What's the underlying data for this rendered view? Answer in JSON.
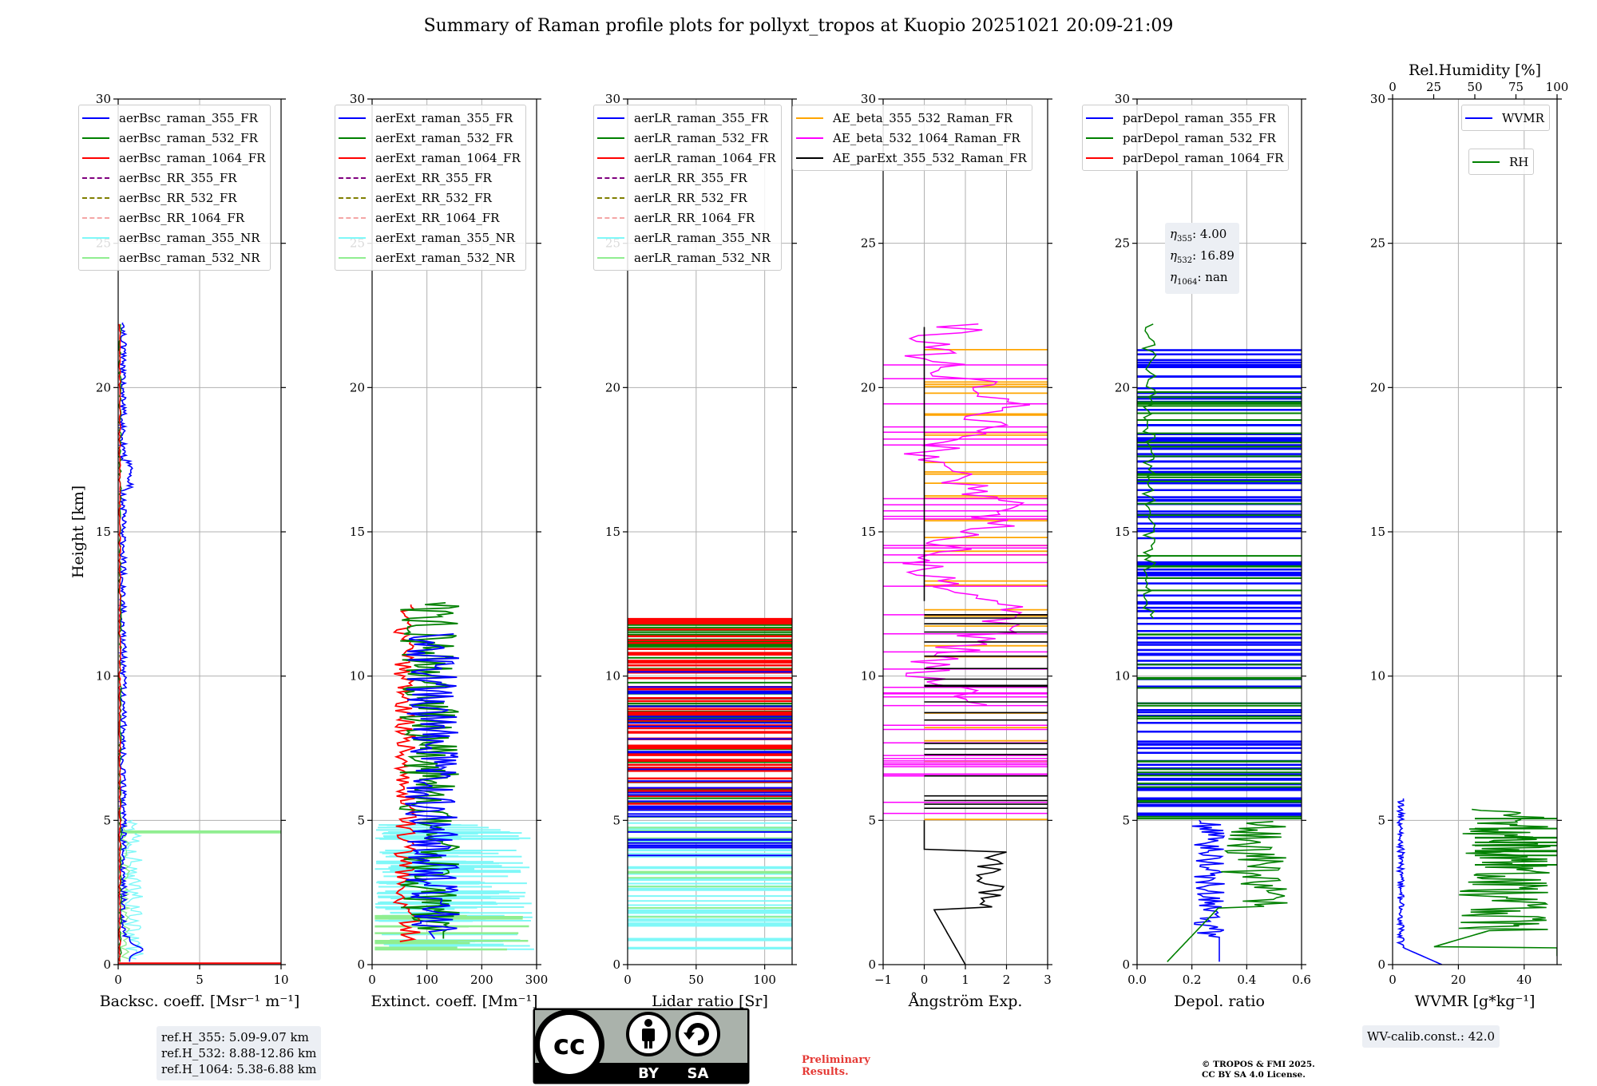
{
  "title": "Summary of Raman profile plots for pollyxt_tropos at Kuopio 20251021 20:09-21:09",
  "ylabel": "Height [km]",
  "chart_data": [
    {
      "id": "bsc",
      "type": "line",
      "xlabel": "Backsc. coeff. [Msr⁻¹ m⁻¹]",
      "xlim": [
        0,
        10
      ],
      "xticks": [
        0,
        5,
        10
      ],
      "ylim": [
        0,
        30
      ],
      "yticks": [
        0,
        5,
        10,
        15,
        20,
        25,
        30
      ],
      "legend": "upper-left",
      "series": [
        {
          "name": "aerBsc_raman_355_FR",
          "color": "#0000ff",
          "style": "solid"
        },
        {
          "name": "aerBsc_raman_532_FR",
          "color": "#008000",
          "style": "solid"
        },
        {
          "name": "aerBsc_raman_1064_FR",
          "color": "#ff0000",
          "style": "solid"
        },
        {
          "name": "aerBsc_RR_355_FR",
          "color": "#800080",
          "style": "dashed"
        },
        {
          "name": "aerBsc_RR_532_FR",
          "color": "#808000",
          "style": "dashed"
        },
        {
          "name": "aerBsc_RR_1064_FR",
          "color": "#f4a6a6",
          "style": "dashed"
        },
        {
          "name": "aerBsc_raman_355_NR",
          "color": "#7ff8f8",
          "style": "solid"
        },
        {
          "name": "aerBsc_raman_532_NR",
          "color": "#90ee90",
          "style": "solid"
        }
      ]
    },
    {
      "id": "ext",
      "type": "line",
      "xlabel": "Extinct. coeff. [Mm⁻¹]",
      "xlim": [
        0,
        300
      ],
      "xticks": [
        0,
        100,
        200,
        300
      ],
      "ylim": [
        0,
        30
      ],
      "yticks": [
        0,
        5,
        10,
        15,
        20,
        25,
        30
      ],
      "legend": "upper-left",
      "series": [
        {
          "name": "aerExt_raman_355_FR",
          "color": "#0000ff",
          "style": "solid"
        },
        {
          "name": "aerExt_raman_532_FR",
          "color": "#008000",
          "style": "solid"
        },
        {
          "name": "aerExt_raman_1064_FR",
          "color": "#ff0000",
          "style": "solid"
        },
        {
          "name": "aerExt_RR_355_FR",
          "color": "#800080",
          "style": "dashed"
        },
        {
          "name": "aerExt_RR_532_FR",
          "color": "#808000",
          "style": "dashed"
        },
        {
          "name": "aerExt_RR_1064_FR",
          "color": "#f4a6a6",
          "style": "dashed"
        },
        {
          "name": "aerExt_raman_355_NR",
          "color": "#7ff8f8",
          "style": "solid"
        },
        {
          "name": "aerExt_raman_532_NR",
          "color": "#90ee90",
          "style": "solid"
        }
      ]
    },
    {
      "id": "lr",
      "type": "line",
      "xlabel": "Lidar ratio [Sr]",
      "xlim": [
        0,
        120
      ],
      "xticks": [
        0,
        50,
        100
      ],
      "ylim": [
        0,
        30
      ],
      "yticks": [
        0,
        5,
        10,
        15,
        20,
        25,
        30
      ],
      "legend": "upper-left",
      "series": [
        {
          "name": "aerLR_raman_355_FR",
          "color": "#0000ff",
          "style": "solid"
        },
        {
          "name": "aerLR_raman_532_FR",
          "color": "#008000",
          "style": "solid"
        },
        {
          "name": "aerLR_raman_1064_FR",
          "color": "#ff0000",
          "style": "solid"
        },
        {
          "name": "aerLR_RR_355_FR",
          "color": "#800080",
          "style": "dashed"
        },
        {
          "name": "aerLR_RR_532_FR",
          "color": "#808000",
          "style": "dashed"
        },
        {
          "name": "aerLR_RR_1064_FR",
          "color": "#f4a6a6",
          "style": "dashed"
        },
        {
          "name": "aerLR_raman_355_NR",
          "color": "#7ff8f8",
          "style": "solid"
        },
        {
          "name": "aerLR_raman_532_NR",
          "color": "#90ee90",
          "style": "solid"
        }
      ]
    },
    {
      "id": "ae",
      "type": "line",
      "xlabel": "Ångström Exp.",
      "xlim": [
        -1,
        3
      ],
      "xticks": [
        -1,
        0,
        1,
        2,
        3
      ],
      "xticklabels": [
        "−1",
        "0",
        "1",
        "2",
        "3"
      ],
      "ylim": [
        0,
        30
      ],
      "yticks": [
        0,
        5,
        10,
        15,
        20,
        25,
        30
      ],
      "legend": "upper-left",
      "series": [
        {
          "name": "AE_beta_355_532_Raman_FR",
          "color": "#ffa500",
          "style": "solid"
        },
        {
          "name": "AE_beta_532_1064_Raman_FR",
          "color": "#ff00ff",
          "style": "solid"
        },
        {
          "name": "AE_parExt_355_532_Raman_FR",
          "color": "#000000",
          "style": "solid"
        }
      ]
    },
    {
      "id": "dep",
      "type": "line",
      "xlabel": "Depol. ratio",
      "xlim": [
        0,
        0.6
      ],
      "xticks": [
        0,
        0.2,
        0.4,
        0.6
      ],
      "xticklabels": [
        "0.0",
        "0.2",
        "0.4",
        "0.6"
      ],
      "ylim": [
        0,
        30
      ],
      "yticks": [
        0,
        5,
        10,
        15,
        20,
        25,
        30
      ],
      "legend": "upper-left",
      "series": [
        {
          "name": "parDepol_raman_355_FR",
          "color": "#0000ff",
          "style": "solid"
        },
        {
          "name": "parDepol_raman_532_FR",
          "color": "#008000",
          "style": "solid"
        },
        {
          "name": "parDepol_raman_1064_FR",
          "color": "#ff0000",
          "style": "solid"
        }
      ]
    },
    {
      "id": "wv",
      "type": "line",
      "xlabel": "WVMR [g*kg⁻¹]",
      "xlim": [
        0,
        50
      ],
      "xticks": [
        0,
        20,
        40
      ],
      "top_xlabel": "Rel.Humidity [%]",
      "top_xlim": [
        0,
        100
      ],
      "top_xticks": [
        0,
        25,
        50,
        75,
        100
      ],
      "ylim": [
        0,
        30
      ],
      "yticks": [
        0,
        5,
        10,
        15,
        20,
        25,
        30
      ],
      "legend": "upper-right",
      "series": [
        {
          "name": "WVMR",
          "color": "#0000ff",
          "style": "solid"
        },
        {
          "name": "RH",
          "color": "#008000",
          "style": "solid"
        }
      ]
    }
  ],
  "annotations": {
    "ref_heights": [
      "ref.H_355: 5.09-9.07 km",
      "ref.H_532: 8.88-12.86 km",
      "ref.H_1064: 5.38-6.88 km"
    ],
    "eta_values": [
      "4.00",
      "16.89",
      "nan"
    ],
    "wv_calib": "WV-calib.const.: 42.0",
    "preliminary": [
      "Preliminary",
      "Results."
    ],
    "copyright": [
      "© TROPOS & FMI 2025.",
      "CC BY SA 4.0 License."
    ],
    "license_badge": {
      "cc": "cc",
      "by": "BY",
      "sa": "SA"
    }
  }
}
